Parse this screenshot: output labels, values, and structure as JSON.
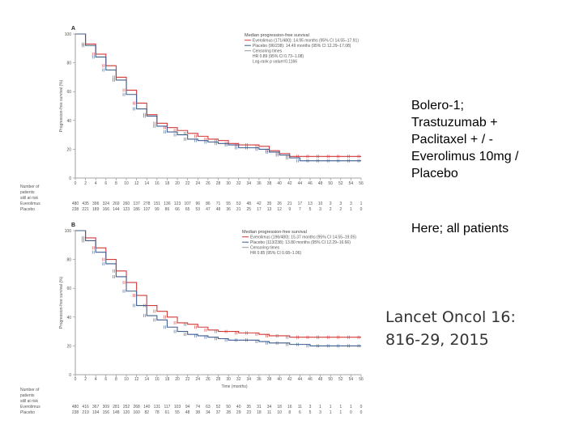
{
  "slide_text": {
    "study_lines": [
      "Bolero-1;",
      "Trastuzumab +",
      "Paclitaxel + / -",
      "Everolimus 10mg /",
      "Placebo"
    ],
    "subset": "Here; all patients",
    "citation_lines": [
      "Lancet Oncol 16:",
      "816-29, 2015"
    ]
  },
  "colors": {
    "everolimus": "#d23a3a",
    "placebo": "#3f5f8f",
    "axis": "#888888"
  },
  "chart_data": [
    {
      "type": "line",
      "panel": "A",
      "ylabel": "Progression-free survival (%)",
      "xlabel": "",
      "ylim": [
        0,
        100
      ],
      "xlim": [
        0,
        56
      ],
      "x_ticks": [
        0,
        2,
        4,
        6,
        8,
        10,
        12,
        14,
        16,
        18,
        20,
        22,
        24,
        26,
        28,
        30,
        32,
        34,
        36,
        38,
        40,
        42,
        44,
        46,
        48,
        50,
        52,
        54,
        56
      ],
      "y_ticks": [
        0,
        20,
        40,
        60,
        80,
        100
      ],
      "legend": {
        "title": "Median progression-free survival",
        "entries": [
          "Everolimus (171/480): 14.95 months (95% CI 14.55–17.91)",
          "Placebo (96/238): 14.49 months (95% CI 12.29–17.08)",
          "Censoring times",
          "HR 0.89 (95% CI 0.73–1.08)",
          "Log-rank p value=0.1166"
        ]
      },
      "series": [
        {
          "name": "Everolimus",
          "x": [
            0,
            2,
            4,
            6,
            8,
            10,
            12,
            14,
            16,
            18,
            20,
            22,
            24,
            26,
            28,
            30,
            32,
            34,
            36,
            38,
            40,
            42,
            44,
            46,
            48,
            50,
            52,
            54,
            56
          ],
          "y": [
            100,
            93,
            86,
            78,
            70,
            61,
            52,
            44,
            38,
            35,
            33,
            31,
            29,
            27,
            26,
            24,
            23,
            23,
            22,
            19,
            17,
            15,
            15,
            15,
            15,
            15,
            15,
            15,
            15
          ]
        },
        {
          "name": "Placebo",
          "x": [
            0,
            2,
            4,
            6,
            8,
            10,
            12,
            14,
            16,
            18,
            20,
            22,
            24,
            26,
            28,
            30,
            32,
            34,
            36,
            38,
            40,
            42,
            44,
            46,
            48,
            50,
            52,
            54,
            56
          ],
          "y": [
            100,
            92,
            84,
            75,
            68,
            58,
            48,
            43,
            36,
            32,
            30,
            27,
            26,
            25,
            24,
            23,
            21,
            21,
            20,
            18,
            16,
            14,
            12,
            12,
            12,
            12,
            12,
            12,
            12
          ]
        }
      ],
      "risk_table": {
        "header_lines": [
          "Number of",
          "patients",
          "still at risk"
        ],
        "rows": [
          {
            "label": "Everolimus",
            "values": [
              "480",
              "435",
              "396",
              "324",
              "269",
              "260",
              "137",
              "278",
              "151",
              "136",
              "123",
              "107",
              "96",
              "86",
              "71",
              "55",
              "53",
              "48",
              "42",
              "35",
              "26",
              "21",
              "17",
              "13",
              "10",
              "3",
              "3",
              "3",
              "1"
            ]
          },
          {
            "label": "Placebo",
            "values": [
              "238",
              "221",
              "189",
              "166",
              "144",
              "123",
              "186",
              "107",
              "99",
              "86",
              "66",
              "65",
              "53",
              "47",
              "48",
              "36",
              "31",
              "25",
              "17",
              "13",
              "12",
              "9",
              "7",
              "5",
              "3",
              "2",
              "2",
              "1",
              "0"
            ]
          }
        ]
      }
    },
    {
      "type": "line",
      "panel": "B",
      "ylabel": "Progression-free survival (%)",
      "xlabel": "Time (months)",
      "ylim": [
        0,
        100
      ],
      "xlim": [
        0,
        56
      ],
      "x_ticks": [
        0,
        2,
        4,
        6,
        8,
        10,
        12,
        14,
        16,
        18,
        20,
        22,
        24,
        26,
        28,
        30,
        32,
        34,
        36,
        38,
        40,
        42,
        44,
        46,
        48,
        50,
        52,
        54,
        56
      ],
      "y_ticks": [
        0,
        20,
        40,
        60,
        80,
        100
      ],
      "legend": {
        "title": "Median progression-free survival",
        "entries": [
          "Everolimus (196/480): 15.37 months (95% CI 14.55–19.05)",
          "Placebo (113/238): 13.80 months (95% CI 12.29–16.66)",
          "Censoring times",
          "HR 0.85 (95% CI 0.68–1.06)"
        ]
      },
      "series": [
        {
          "name": "Everolimus",
          "x": [
            0,
            2,
            4,
            6,
            8,
            10,
            12,
            14,
            16,
            18,
            20,
            22,
            24,
            26,
            28,
            30,
            32,
            34,
            36,
            38,
            40,
            42,
            44,
            46,
            48,
            50,
            52,
            54,
            56
          ],
          "y": [
            100,
            95,
            88,
            80,
            72,
            64,
            55,
            48,
            44,
            40,
            36,
            35,
            33,
            31,
            30,
            30,
            29,
            29,
            28,
            27,
            27,
            26,
            26,
            26,
            26,
            26,
            26,
            26,
            26
          ]
        },
        {
          "name": "Placebo",
          "x": [
            0,
            2,
            4,
            6,
            8,
            10,
            12,
            14,
            16,
            18,
            20,
            22,
            24,
            26,
            28,
            30,
            32,
            34,
            36,
            38,
            40,
            42,
            44,
            46,
            48,
            50,
            52,
            54,
            56
          ],
          "y": [
            100,
            93,
            85,
            77,
            68,
            58,
            48,
            41,
            38,
            33,
            30,
            28,
            27,
            26,
            25,
            24,
            24,
            24,
            23,
            22,
            22,
            21,
            21,
            20,
            20,
            20,
            20,
            20,
            20
          ]
        }
      ],
      "risk_table": {
        "header_lines": [
          "Number of",
          "patients",
          "still at risk"
        ],
        "rows": [
          {
            "label": "Everolimus",
            "values": [
              "480",
              "416",
              "367",
              "309",
              "281",
              "252",
              "268",
              "140",
              "131",
              "117",
              "103",
              "94",
              "74",
              "63",
              "52",
              "50",
              "40",
              "35",
              "31",
              "34",
              "18",
              "16",
              "11",
              "3",
              "1",
              "1",
              "1",
              "1",
              "0"
            ]
          },
          {
            "label": "Placebo",
            "values": [
              "238",
              "219",
              "194",
              "156",
              "148",
              "120",
              "160",
              "82",
              "78",
              "61",
              "55",
              "48",
              "38",
              "34",
              "37",
              "28",
              "29",
              "23",
              "18",
              "11",
              "10",
              "8",
              "6",
              "5",
              "3",
              "1",
              "1",
              "0",
              "0"
            ]
          }
        ]
      }
    }
  ]
}
